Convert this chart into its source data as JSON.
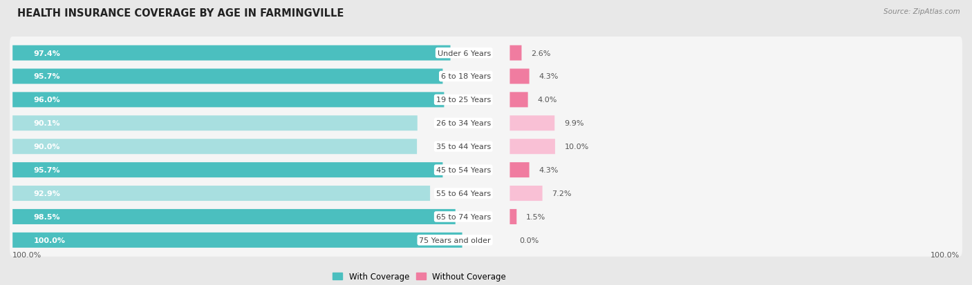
{
  "title": "HEALTH INSURANCE COVERAGE BY AGE IN FARMINGVILLE",
  "source": "Source: ZipAtlas.com",
  "categories": [
    "Under 6 Years",
    "6 to 18 Years",
    "19 to 25 Years",
    "26 to 34 Years",
    "35 to 44 Years",
    "45 to 54 Years",
    "55 to 64 Years",
    "65 to 74 Years",
    "75 Years and older"
  ],
  "with_coverage": [
    97.4,
    95.7,
    96.0,
    90.1,
    90.0,
    95.7,
    92.9,
    98.5,
    100.0
  ],
  "without_coverage": [
    2.6,
    4.3,
    4.0,
    9.9,
    10.0,
    4.3,
    7.2,
    1.5,
    0.0
  ],
  "color_with": "#4bbfbf",
  "color_without": "#f07ca0",
  "color_with_light": "#a8dfe0",
  "color_without_light": "#f9c0d5",
  "background_color": "#e8e8e8",
  "row_background": "#f5f5f5",
  "title_fontsize": 10.5,
  "label_fontsize": 8.0,
  "pct_fontsize": 8.0,
  "tick_fontsize": 8.0,
  "legend_fontsize": 8.5
}
